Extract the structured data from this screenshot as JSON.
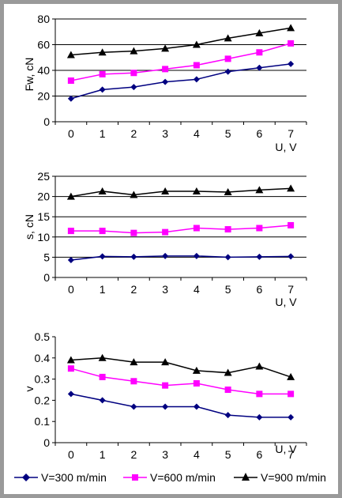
{
  "chart_data": [
    {
      "type": "line",
      "ylabel": "Fw, cN",
      "xlabel": "U, V",
      "x": [
        0,
        1,
        2,
        3,
        4,
        5,
        6,
        7
      ],
      "ylim": [
        0,
        80
      ],
      "yticks": [
        0,
        20,
        40,
        60,
        80
      ],
      "grid": true,
      "series": [
        {
          "name": "V=300 m/min",
          "values": [
            18,
            25,
            27,
            31,
            33,
            39,
            42,
            45
          ]
        },
        {
          "name": "V=600 m/min",
          "values": [
            32,
            37,
            38,
            41,
            44,
            49,
            54,
            61
          ]
        },
        {
          "name": "V=900 m/min",
          "values": [
            52,
            54,
            55,
            57,
            60,
            65,
            69,
            73
          ]
        }
      ]
    },
    {
      "type": "line",
      "ylabel": "s, cN",
      "xlabel": "U, V",
      "x": [
        0,
        1,
        2,
        3,
        4,
        5,
        6,
        7
      ],
      "ylim": [
        0,
        25
      ],
      "yticks": [
        0,
        5,
        10,
        15,
        20,
        25
      ],
      "grid": true,
      "series": [
        {
          "name": "V=300 m/min",
          "values": [
            4.3,
            5.2,
            5.1,
            5.3,
            5.3,
            5.0,
            5.1,
            5.2
          ]
        },
        {
          "name": "V=600 m/min",
          "values": [
            11.5,
            11.5,
            11.0,
            11.2,
            12.2,
            11.9,
            12.2,
            12.9
          ]
        },
        {
          "name": "V=900 m/min",
          "values": [
            20.0,
            21.3,
            20.4,
            21.3,
            21.3,
            21.1,
            21.6,
            22.0
          ]
        }
      ]
    },
    {
      "type": "line",
      "ylabel": "v",
      "xlabel": "U, V",
      "x": [
        0,
        1,
        2,
        3,
        4,
        5,
        6,
        7
      ],
      "ylim": [
        0,
        0.5
      ],
      "yticks": [
        "0",
        "0.1",
        "0.2",
        "0.3",
        "0.4",
        "0.5"
      ],
      "grid": false,
      "series": [
        {
          "name": "V=300 m/min",
          "values": [
            0.23,
            0.2,
            0.17,
            0.17,
            0.17,
            0.13,
            0.12,
            0.12
          ]
        },
        {
          "name": "V=600 m/min",
          "values": [
            0.35,
            0.31,
            0.29,
            0.27,
            0.28,
            0.25,
            0.23,
            0.23
          ]
        },
        {
          "name": "V=900 m/min",
          "values": [
            0.39,
            0.4,
            0.38,
            0.38,
            0.34,
            0.33,
            0.36,
            0.31
          ]
        }
      ]
    }
  ],
  "legend": [
    {
      "label": "V=300 m/min",
      "color": "#000080",
      "marker": "diamond"
    },
    {
      "label": "V=600 m/min",
      "color": "#ff00ff",
      "marker": "square"
    },
    {
      "label": "V=900 m/min",
      "color": "#000000",
      "marker": "triangle"
    }
  ]
}
